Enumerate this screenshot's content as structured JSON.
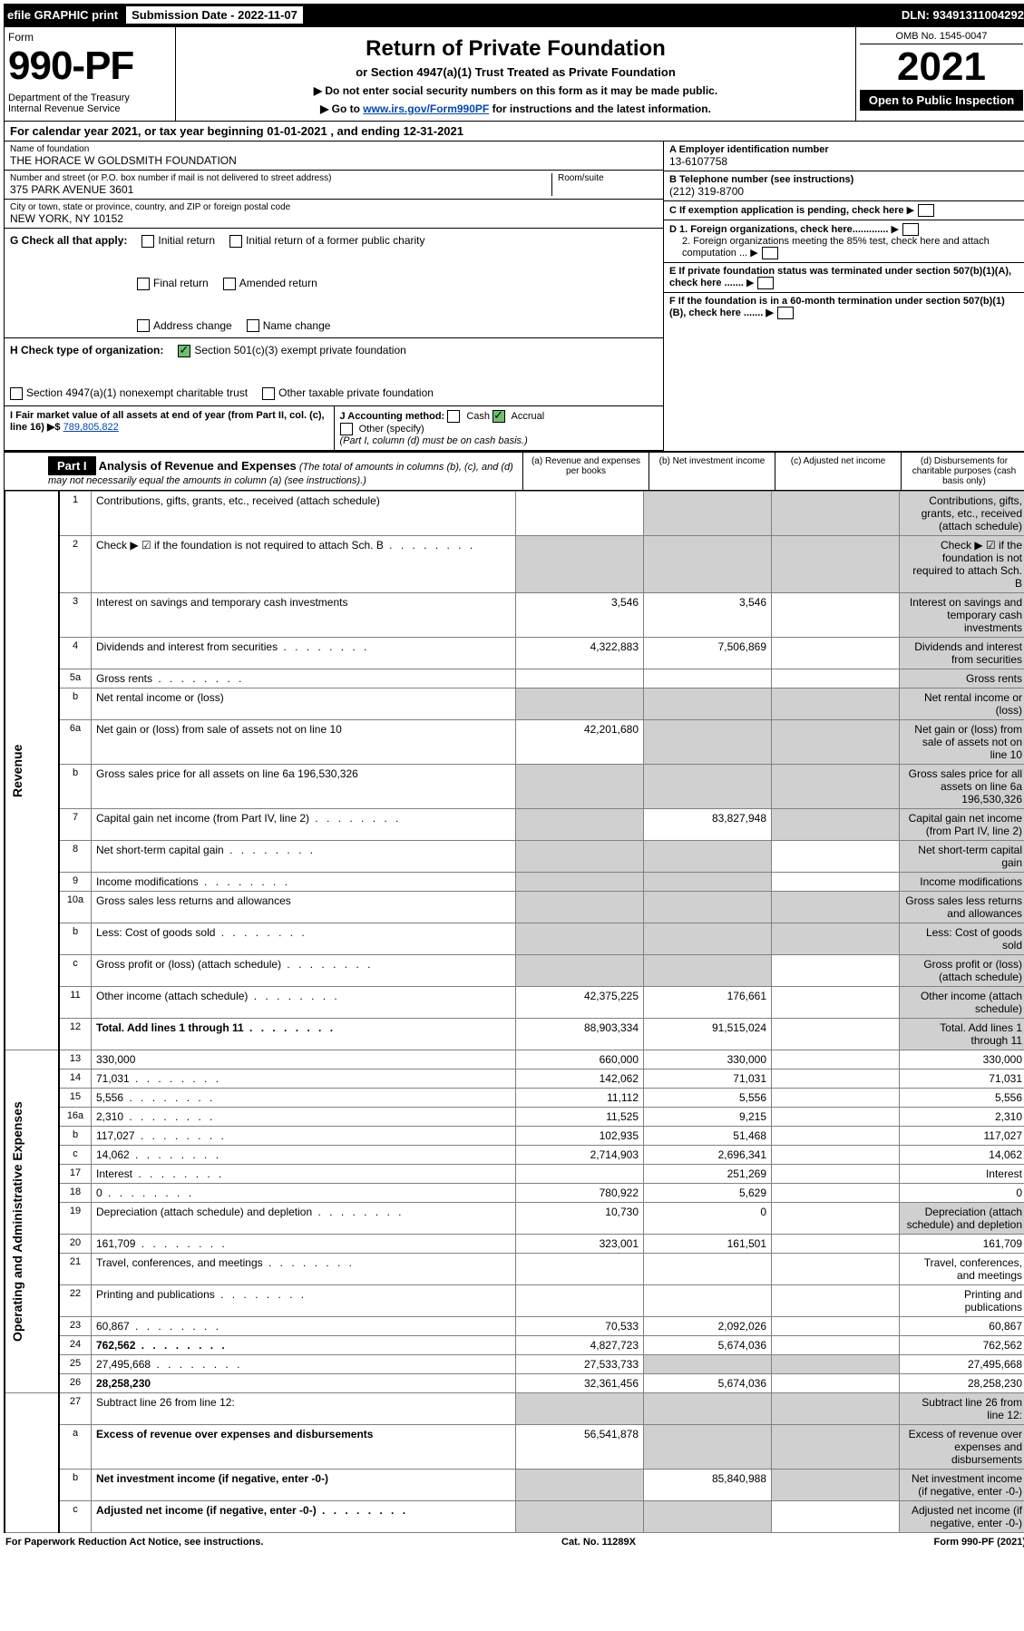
{
  "top_bar": {
    "efile": "efile GRAPHIC print",
    "sub_label": "Submission Date - 2022-11-07",
    "dln": "DLN: 93491311004292"
  },
  "header": {
    "form_label": "Form",
    "form_number": "990-PF",
    "dept": "Department of the Treasury\nInternal Revenue Service",
    "title": "Return of Private Foundation",
    "subtitle": "or Section 4947(a)(1) Trust Treated as Private Foundation",
    "inst1": "▶ Do not enter social security numbers on this form as it may be made public.",
    "inst2_pre": "▶ Go to ",
    "inst2_link": "www.irs.gov/Form990PF",
    "inst2_post": " for instructions and the latest information.",
    "omb": "OMB No. 1545-0047",
    "year": "2021",
    "open": "Open to Public Inspection"
  },
  "cal_year": "For calendar year 2021, or tax year beginning 01-01-2021            , and ending 12-31-2021",
  "foundation": {
    "name_label": "Name of foundation",
    "name": "THE HORACE W GOLDSMITH FOUNDATION",
    "addr_label": "Number and street (or P.O. box number if mail is not delivered to street address)",
    "addr": "375 PARK AVENUE 3601",
    "room_label": "Room/suite",
    "city_label": "City or town, state or province, country, and ZIP or foreign postal code",
    "city": "NEW YORK, NY  10152"
  },
  "right_meta": {
    "a_label": "A Employer identification number",
    "a_val": "13-6107758",
    "b_label": "B Telephone number (see instructions)",
    "b_val": "(212) 319-8700",
    "c_label": "C If exemption application is pending, check here",
    "d1": "D 1. Foreign organizations, check here.............",
    "d2": "2. Foreign organizations meeting the 85% test, check here and attach computation ...",
    "e": "E  If private foundation status was terminated under section 507(b)(1)(A), check here .......",
    "f": "F  If the foundation is in a 60-month termination under section 507(b)(1)(B), check here .......  ▶"
  },
  "g": {
    "label": "G Check all that apply:",
    "opts": [
      "Initial return",
      "Initial return of a former public charity",
      "Final return",
      "Amended return",
      "Address change",
      "Name change"
    ]
  },
  "h": {
    "label": "H Check type of organization:",
    "opt1": "Section 501(c)(3) exempt private foundation",
    "opt2": "Section 4947(a)(1) nonexempt charitable trust",
    "opt3": "Other taxable private foundation"
  },
  "i": {
    "label": "I Fair market value of all assets at end of year (from Part II, col. (c), line 16) ▶$",
    "val": "789,805,822"
  },
  "j": {
    "label": "J Accounting method:",
    "cash": "Cash",
    "accrual": "Accrual",
    "other": "Other (specify)",
    "note": "(Part I, column (d) must be on cash basis.)"
  },
  "part1": {
    "hdr": "Part I",
    "title": "Analysis of Revenue and Expenses",
    "note": "(The total of amounts in columns (b), (c), and (d) may not necessarily equal the amounts in column (a) (see instructions).)",
    "col_a": "(a)  Revenue and expenses per books",
    "col_b": "(b)  Net investment income",
    "col_c": "(c)  Adjusted net income",
    "col_d": "(d)  Disbursements for charitable purposes (cash basis only)"
  },
  "vlabel_rev": "Revenue",
  "vlabel_exp": "Operating and Administrative Expenses",
  "rows": [
    {
      "n": "1",
      "d": "Contributions, gifts, grants, etc., received (attach schedule)",
      "a": "",
      "b": "",
      "shade_b": true,
      "shade_c": true,
      "shade_d": true
    },
    {
      "n": "2",
      "d": "Check ▶ ☑ if the foundation is not required to attach Sch. B",
      "dots": true,
      "shade_a": true,
      "shade_b": true,
      "shade_c": true,
      "shade_d": true
    },
    {
      "n": "3",
      "d": "Interest on savings and temporary cash investments",
      "a": "3,546",
      "b": "3,546",
      "shade_d": true
    },
    {
      "n": "4",
      "d": "Dividends and interest from securities",
      "dots": true,
      "a": "4,322,883",
      "b": "7,506,869",
      "shade_d": true
    },
    {
      "n": "5a",
      "d": "Gross rents",
      "dots": true,
      "shade_d": true
    },
    {
      "n": "b",
      "d": "Net rental income or (loss)",
      "shade_a": true,
      "shade_b": true,
      "shade_c": true,
      "shade_d": true
    },
    {
      "n": "6a",
      "d": "Net gain or (loss) from sale of assets not on line 10",
      "a": "42,201,680",
      "shade_b": true,
      "shade_c": true,
      "shade_d": true
    },
    {
      "n": "b",
      "d": "Gross sales price for all assets on line 6a          196,530,326",
      "shade_a": true,
      "shade_b": true,
      "shade_c": true,
      "shade_d": true
    },
    {
      "n": "7",
      "d": "Capital gain net income (from Part IV, line 2)",
      "dots": true,
      "shade_a": true,
      "b": "83,827,948",
      "shade_c": true,
      "shade_d": true
    },
    {
      "n": "8",
      "d": "Net short-term capital gain",
      "dots": true,
      "shade_a": true,
      "shade_b": true,
      "shade_d": true
    },
    {
      "n": "9",
      "d": "Income modifications",
      "dots": true,
      "shade_a": true,
      "shade_b": true,
      "shade_d": true
    },
    {
      "n": "10a",
      "d": "Gross sales less returns and allowances",
      "shade_a": true,
      "shade_b": true,
      "shade_c": true,
      "shade_d": true
    },
    {
      "n": "b",
      "d": "Less: Cost of goods sold",
      "dots": true,
      "shade_a": true,
      "shade_b": true,
      "shade_c": true,
      "shade_d": true
    },
    {
      "n": "c",
      "d": "Gross profit or (loss) (attach schedule)",
      "dots": true,
      "shade_a": true,
      "shade_b": true,
      "shade_d": true
    },
    {
      "n": "11",
      "d": "Other income (attach schedule)",
      "dots": true,
      "a": "42,375,225",
      "b": "176,661",
      "shade_d": true
    },
    {
      "n": "12",
      "d": "Total. Add lines 1 through 11",
      "bold": true,
      "dots": true,
      "a": "88,903,334",
      "b": "91,515,024",
      "shade_d": true
    }
  ],
  "exp_rows": [
    {
      "n": "13",
      "d": "330,000",
      "a": "660,000",
      "b": "330,000"
    },
    {
      "n": "14",
      "d": "71,031",
      "dots": true,
      "a": "142,062",
      "b": "71,031"
    },
    {
      "n": "15",
      "d": "5,556",
      "dots": true,
      "a": "11,112",
      "b": "5,556"
    },
    {
      "n": "16a",
      "d": "2,310",
      "dots": true,
      "a": "11,525",
      "b": "9,215"
    },
    {
      "n": "b",
      "d": "117,027",
      "dots": true,
      "a": "102,935",
      "b": "51,468"
    },
    {
      "n": "c",
      "d": "14,062",
      "dots": true,
      "a": "2,714,903",
      "b": "2,696,341"
    },
    {
      "n": "17",
      "d": "Interest",
      "dots": true,
      "b": "251,269"
    },
    {
      "n": "18",
      "d": "0",
      "dots": true,
      "a": "780,922",
      "b": "5,629"
    },
    {
      "n": "19",
      "d": "Depreciation (attach schedule) and depletion",
      "dots": true,
      "a": "10,730",
      "b": "0",
      "shade_d": true
    },
    {
      "n": "20",
      "d": "161,709",
      "dots": true,
      "a": "323,001",
      "b": "161,501"
    },
    {
      "n": "21",
      "d": "Travel, conferences, and meetings",
      "dots": true
    },
    {
      "n": "22",
      "d": "Printing and publications",
      "dots": true
    },
    {
      "n": "23",
      "d": "60,867",
      "dots": true,
      "a": "70,533",
      "b": "2,092,026"
    },
    {
      "n": "24",
      "d": "762,562",
      "bold": true,
      "dots": true,
      "a": "4,827,723",
      "b": "5,674,036"
    },
    {
      "n": "25",
      "d": "27,495,668",
      "dots": true,
      "a": "27,533,733",
      "shade_b": true,
      "shade_c": true
    },
    {
      "n": "26",
      "d": "28,258,230",
      "bold": true,
      "a": "32,361,456",
      "b": "5,674,036"
    }
  ],
  "bottom_rows": [
    {
      "n": "27",
      "d": "Subtract line 26 from line 12:",
      "shade_a": true,
      "shade_b": true,
      "shade_c": true,
      "shade_d": true
    },
    {
      "n": "a",
      "d": "Excess of revenue over expenses and disbursements",
      "bold": true,
      "a": "56,541,878",
      "shade_b": true,
      "shade_c": true,
      "shade_d": true
    },
    {
      "n": "b",
      "d": "Net investment income (if negative, enter -0-)",
      "bold": true,
      "shade_a": true,
      "b": "85,840,988",
      "shade_c": true,
      "shade_d": true
    },
    {
      "n": "c",
      "d": "Adjusted net income (if negative, enter -0-)",
      "bold": true,
      "dots": true,
      "shade_a": true,
      "shade_b": true,
      "shade_d": true
    }
  ],
  "footer": {
    "left": "For Paperwork Reduction Act Notice, see instructions.",
    "mid": "Cat. No. 11289X",
    "right": "Form 990-PF (2021)"
  }
}
